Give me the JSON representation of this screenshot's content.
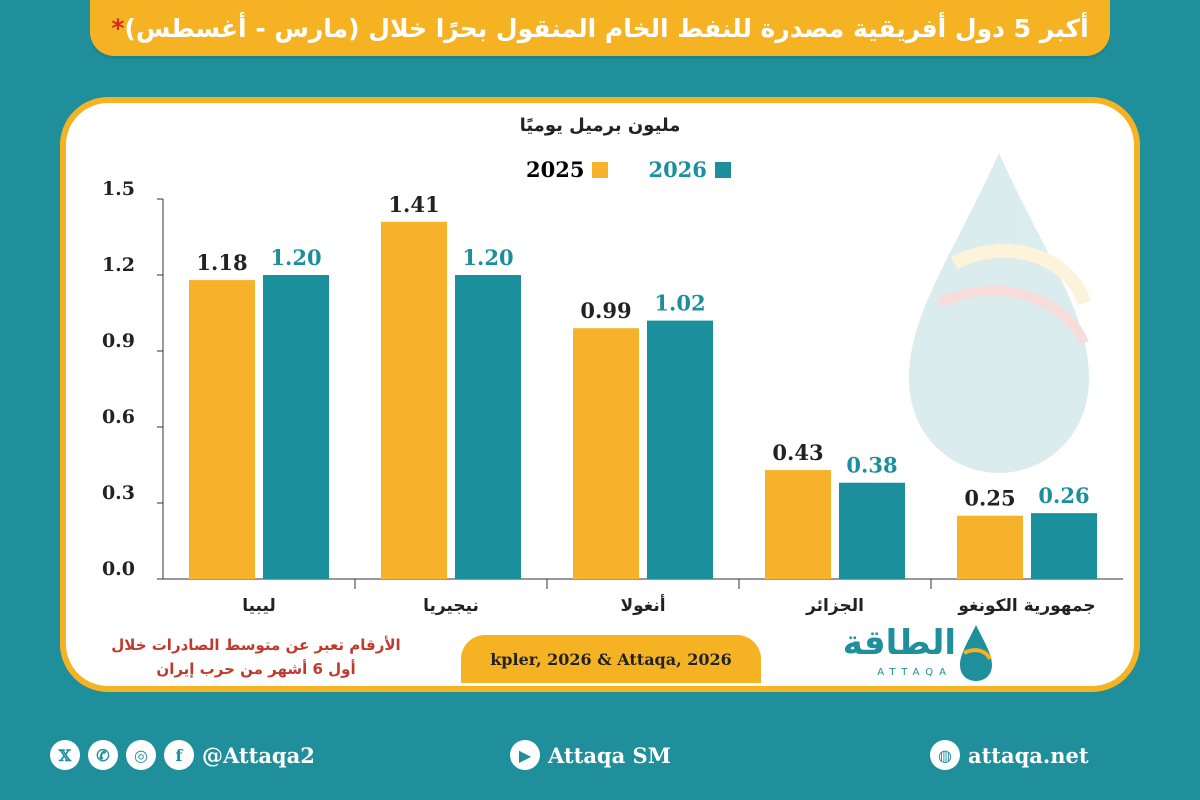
{
  "title": "أكبر 5 دول أفريقية مصدرة للنفط الخام المنقول بحرًا  خلال (مارس - أغسطس)",
  "title_star": "*",
  "colors": {
    "series_2025": "#f7b22b",
    "series_2026": "#1b8f9c",
    "title_bg": "#f5b324",
    "background": "#1f8f9c",
    "star": "#d42a1d"
  },
  "note_line1": "الأرقام تعبر عن متوسط الصادرات خلال",
  "note_line2": "أول 6 أشهر من حرب إيران",
  "source": "kpler, 2026 & Attaqa, 2026",
  "brand": {
    "name_ar": "الطاقة",
    "name_en": "ATTAQA"
  },
  "footer": {
    "social_handle": "@Attaqa2",
    "youtube": "Attaqa SM",
    "website": "attaqa.net",
    "icons": [
      "x-icon",
      "whatsapp-icon",
      "instagram-icon",
      "facebook-icon",
      "youtube-icon",
      "globe-icon"
    ]
  },
  "chart_data": {
    "type": "bar",
    "ylabel": "مليون برميل يوميًا",
    "categories": [
      "ليبيا",
      "نيجيريا",
      "أنغولا",
      "الجزائر",
      "جمهورية الكونغو"
    ],
    "series": [
      {
        "name": "2025",
        "values": [
          1.18,
          1.41,
          0.99,
          0.43,
          0.25
        ],
        "labels": [
          "1.18",
          "1.41",
          "0.99",
          "0.43",
          "0.25"
        ]
      },
      {
        "name": "2026",
        "values": [
          1.2,
          1.2,
          1.02,
          0.38,
          0.26
        ],
        "labels": [
          "1.20",
          "1.20",
          "1.02",
          "0.38",
          "0.26"
        ]
      }
    ],
    "yticks": [
      "0.0",
      "0.3",
      "0.6",
      "0.9",
      "1.2",
      "1.5"
    ],
    "ylim": [
      0,
      1.5
    ],
    "grid": false,
    "legend": "top-center"
  }
}
